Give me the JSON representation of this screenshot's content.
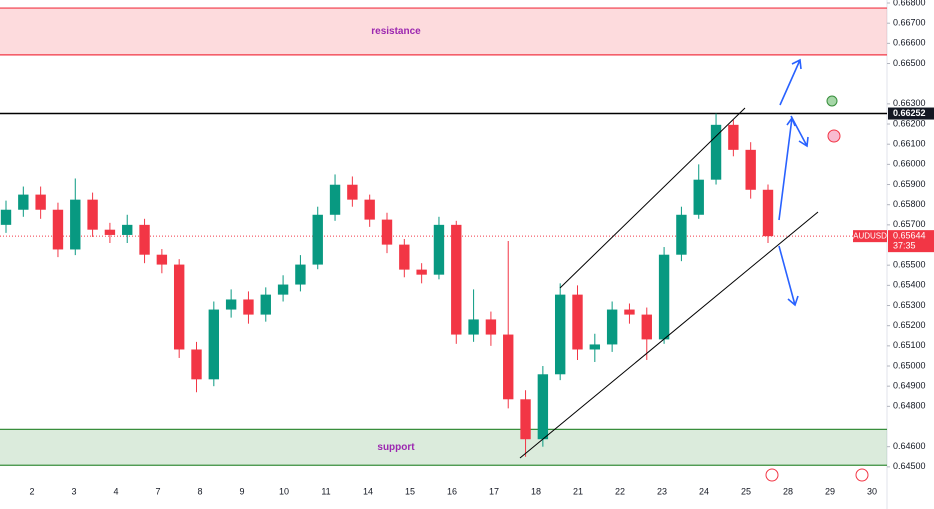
{
  "chart_data": {
    "type": "candlestick",
    "symbol": "AUDUSD",
    "countdown": "37:35",
    "last": 0.65644,
    "level": 0.66252,
    "up_color": "#089981",
    "down_color": "#f23645",
    "zones": [
      {
        "text": "resistance",
        "range": [
          0.66543,
          0.66775
        ],
        "color": "#f23645"
      },
      {
        "text": "support",
        "range": [
          0.64508,
          0.64686
        ],
        "color": "#388e3c"
      }
    ],
    "categories": [
      "2",
      "3",
      "4",
      "7",
      "8",
      "9",
      "10",
      "11",
      "14",
      "15",
      "16",
      "17",
      "18",
      "21",
      "22",
      "23",
      "24",
      "25",
      "28",
      "29",
      "30"
    ],
    "open": [
      0.657,
      0.65775,
      0.6585,
      0.65775,
      0.65578,
      0.65825,
      0.65676,
      0.6565,
      0.657,
      0.65552,
      0.65503,
      0.65082,
      0.64934,
      0.6528,
      0.6533,
      0.65255,
      0.65354,
      0.65404,
      0.65503,
      0.6575,
      0.65899,
      0.65825,
      0.65726,
      0.65602,
      0.65478,
      0.65453,
      0.657,
      0.65156,
      0.65231,
      0.65156,
      0.64835,
      0.64637,
      0.64959,
      0.65354,
      0.65082,
      0.65107,
      0.6528,
      0.65255,
      0.65132,
      0.65552,
      0.6575,
      0.65924,
      0.66196,
      0.66072,
      0.65874
    ],
    "high": [
      0.6582,
      0.6589,
      0.6589,
      0.6581,
      0.6593,
      0.6586,
      0.6571,
      0.6575,
      0.6573,
      0.6558,
      0.6553,
      0.6512,
      0.6532,
      0.6538,
      0.6537,
      0.6539,
      0.6545,
      0.6555,
      0.6579,
      0.6595,
      0.6594,
      0.6585,
      0.6576,
      0.6563,
      0.6551,
      0.6574,
      0.6572,
      0.6538,
      0.6527,
      0.6562,
      0.6488,
      0.65,
      0.6541,
      0.654,
      0.6516,
      0.6532,
      0.6531,
      0.6529,
      0.6559,
      0.6579,
      0.66,
      0.66252,
      0.6622,
      0.6611,
      0.659
    ],
    "low": [
      0.6566,
      0.6574,
      0.6573,
      0.6554,
      0.6555,
      0.6564,
      0.6561,
      0.6561,
      0.6551,
      0.6546,
      0.6504,
      0.6487,
      0.649,
      0.6524,
      0.6521,
      0.6522,
      0.6532,
      0.6537,
      0.6548,
      0.6572,
      0.6579,
      0.6569,
      0.6556,
      0.6544,
      0.6541,
      0.6543,
      0.6511,
      0.6512,
      0.651,
      0.6479,
      0.6455,
      0.646,
      0.6493,
      0.6503,
      0.6502,
      0.6507,
      0.6521,
      0.6503,
      0.6511,
      0.6552,
      0.6573,
      0.659,
      0.6604,
      0.6583,
      0.6561
    ],
    "close": [
      0.65775,
      0.6585,
      0.65775,
      0.65578,
      0.65825,
      0.65676,
      0.6565,
      0.657,
      0.65552,
      0.65503,
      0.65082,
      0.64934,
      0.6528,
      0.6533,
      0.65255,
      0.65354,
      0.65404,
      0.65503,
      0.6575,
      0.65899,
      0.65825,
      0.65726,
      0.65602,
      0.65478,
      0.65453,
      0.657,
      0.65156,
      0.65231,
      0.65156,
      0.64835,
      0.64637,
      0.64959,
      0.65354,
      0.65082,
      0.65107,
      0.6528,
      0.65255,
      0.65132,
      0.65552,
      0.6575,
      0.65924,
      0.66196,
      0.66072,
      0.65874,
      0.65644
    ],
    "ylim": [
      0.6441,
      0.66815
    ],
    "yticks": [
      {
        "value": 0.668,
        "label": "0.66800"
      },
      {
        "value": 0.667,
        "label": "0.66700"
      },
      {
        "value": 0.666,
        "label": "0.66600"
      },
      {
        "value": 0.665,
        "label": "0.66500"
      },
      {
        "value": 0.663,
        "label": "0.66300"
      },
      {
        "value": 0.662,
        "label": "0.66200"
      },
      {
        "value": 0.661,
        "label": "0.66100"
      },
      {
        "value": 0.66,
        "label": "0.66000"
      },
      {
        "value": 0.659,
        "label": "0.65900"
      },
      {
        "value": 0.658,
        "label": "0.65800"
      },
      {
        "value": 0.657,
        "label": "0.65700"
      },
      {
        "value": 0.655,
        "label": "0.65500"
      },
      {
        "value": 0.654,
        "label": "0.65400"
      },
      {
        "value": 0.653,
        "label": "0.65300"
      },
      {
        "value": 0.652,
        "label": "0.65200"
      },
      {
        "value": 0.651,
        "label": "0.65100"
      },
      {
        "value": 0.65,
        "label": "0.65000"
      },
      {
        "value": 0.649,
        "label": "0.64900"
      },
      {
        "value": 0.648,
        "label": "0.64800"
      },
      {
        "value": 0.646,
        "label": "0.64600"
      },
      {
        "value": 0.645,
        "label": "0.64500"
      }
    ]
  }
}
